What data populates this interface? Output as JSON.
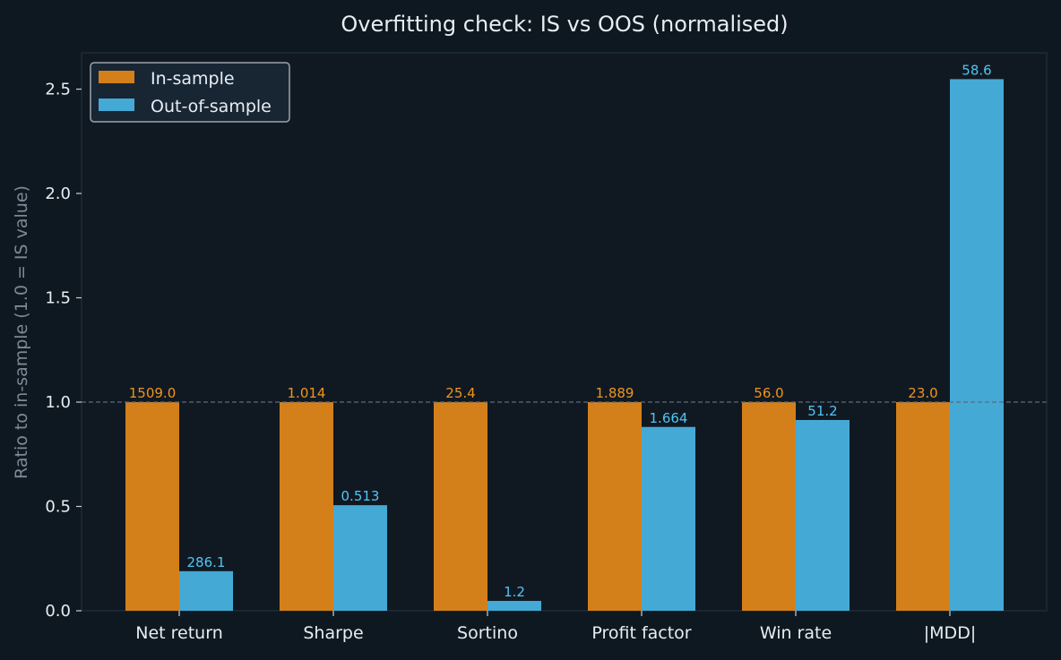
{
  "chart_data": {
    "type": "bar",
    "title": "Overfitting check: IS vs OOS (normalised)",
    "xlabel": "",
    "ylabel": "Ratio to in-sample (1.0 = IS value)",
    "categories": [
      "Net return",
      "Sharpe",
      "Sortino",
      "Profit factor",
      "Win rate",
      "|MDD|"
    ],
    "ylim": [
      0,
      2.674
    ],
    "yticks": [
      0.0,
      0.5,
      1.0,
      1.5,
      2.0,
      2.5
    ],
    "ytick_labels": [
      "0.0",
      "0.5",
      "1.0",
      "1.5",
      "2.0",
      "2.5"
    ],
    "reference_line": 1.0,
    "grid": false,
    "legend_position": "top-left",
    "series": [
      {
        "name": "In-sample",
        "color": "#d4801a",
        "label_color": "#ee9420",
        "values": [
          1.0,
          1.0,
          1.0,
          1.0,
          1.0,
          1.0
        ],
        "labels": [
          "1509.0",
          "1.014",
          "25.4",
          "1.889",
          "56.0",
          "23.0"
        ]
      },
      {
        "name": "Out-of-sample",
        "color": "#45a9d6",
        "label_color": "#52c4f2",
        "values": [
          0.1896,
          0.5059,
          0.0472,
          0.8809,
          0.9143,
          2.5478
        ],
        "labels": [
          "286.1",
          "0.513",
          "1.2",
          "1.664",
          "51.2",
          "58.6"
        ]
      }
    ]
  }
}
